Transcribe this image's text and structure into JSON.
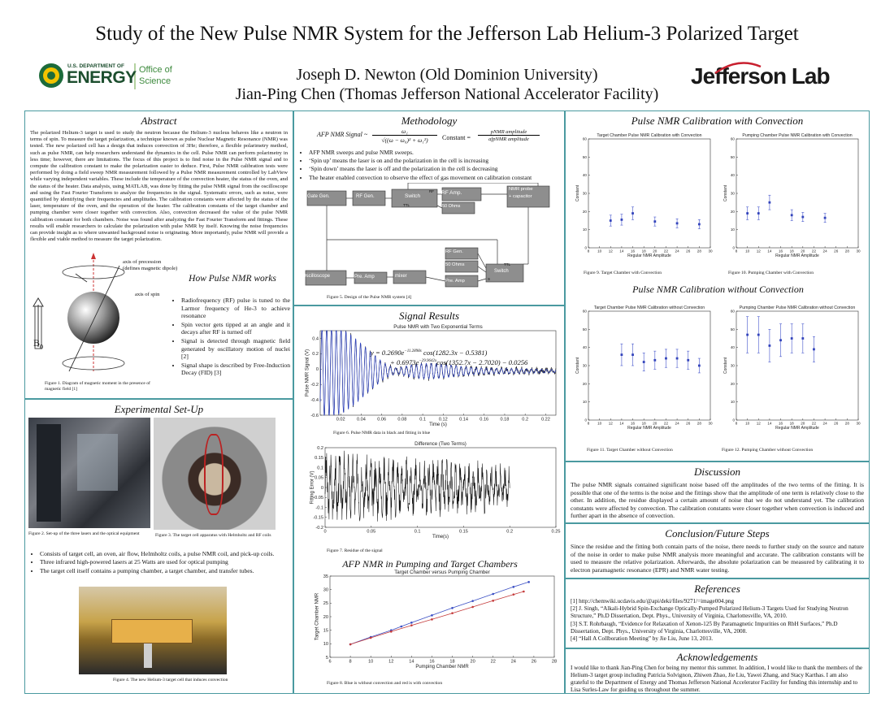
{
  "title": "Study of the New Pulse NMR System for the Jefferson Lab Helium-3 Polarized Target",
  "authors": [
    "Joseph D. Newton (Old Dominion University)",
    "Jian-Ping Chen (Thomas Jefferson National Accelerator Facility)"
  ],
  "logos": {
    "doe_small": "U.S. DEPARTMENT OF",
    "doe_big": "ENERGY",
    "doe_office1": "Office of",
    "doe_office2": "Science",
    "jlab": "Jefferson Lab"
  },
  "abstract": {
    "heading": "Abstract",
    "text": "The polarized Helium-3 target is used to study the neutron because the Helium-3 nucleus behaves like a neutron in terms of spin. To measure the target polarization, a technique known as pulse Nuclear Magnetic Resonance (NMR) was tested. The new polarized cell has a design that induces convection of 3He; therefore, a flexible polarimetry method, such as pulse NMR, can help researchers understand the dynamics in the cell. Pulse NMR can perform polarimetry in less time; however, there are limitations. The focus of this project is to find noise in the Pulse NMR signal and to compute the calibration constant to make the polarization easier to deduce. First, Pulse NMR calibration tests were performed by doing a field sweep NMR measurement followed by a Pulse NMR measurement controlled by LabView while varying independent variables. These include the temperature of the convection heater, the status of the oven, and the status of the heater. Data analysis, using MATLAB, was done by fitting the pulse NMR signal from the oscilloscope and using the Fast Fourier Transform to analyze the frequencies in the signal. Systematic errors, such as noise, were quantified by identifying their frequencies and amplitudes. The calibration constants were affected by the status of the laser, temperature of the oven, and the operation of the heater. The calibration constants of the target chamber and pumping chamber were closer together with convection. Also, convection decreased the value of the pulse NMR calibration constant for both chambers. Noise was found after analyzing the Fast Fourier Transform and fittings. These results will enable researchers to calculate the polarization with pulse NMR by itself. Knowing the noise frequencies can provide insight as to where unwanted background noise is originating. More importantly, pulse NMR will provide a flexible and viable method to measure the target polarization."
  },
  "how": {
    "heading": "How Pulse NMR works",
    "label_axis": "axis of precession",
    "label_axis2": "(defines magnetic dipole)",
    "label_spin": "axis of spin",
    "label_b0": "B",
    "label_b0_sub": "0",
    "bullets": [
      "Radiofrequency (RF) pulse is tuned to the Larmor frequency of He-3 to achieve resonance",
      "Spin vector gets tipped at an angle and it decays after RF is turned off",
      "Signal is detected through magnetic field generated by oscillatory motion of nuclei [2]",
      "Signal shape is described by Free-Induction Decay (FID) [3]"
    ],
    "fig1": "Figure 1.  Diagram of magnetic moment in the presence of magnetic field [1]"
  },
  "setup": {
    "heading": "Experimental Set-Up",
    "fig2": "Figure 2.  Set-up of the three lasers and the optical equipment",
    "fig3": "Figure 3.  The target cell apparatus with Helmholtz and RF coils",
    "bullets": [
      "Consists of target cell, an oven, air flow, Helmholtz coils, a pulse NMR coil, and pick-up coils.",
      "Three infrared high-powered lasers at 25 Watts are used for optical pumping",
      "The target cell itself contains a pumping chamber, a target chamber, and transfer tubes."
    ],
    "fig4": "Figure 4.  The new Helium-3 target cell that induces convection"
  },
  "method": {
    "heading": "Methodology",
    "eq_lhs": "AFP NMR Signal ~",
    "eq_num": "ω₁",
    "eq_den": "√((ω − ω₀)² + ω₁²)",
    "const_lhs": "Constant =",
    "const_num": "pNMR amplitude",
    "const_den": "afpNMR amplitude",
    "bullets": [
      "AFP NMR sweeps and pulse NMR sweeps.",
      "‘Spin up’ means the laser is on and the polarization in the cell is increasing",
      "‘Spin down’ means the laser is off and the polarization in the cell is decreasing",
      "The heater enabled convection to observe the effect of gas movement on calibration constant"
    ],
    "blocks": {
      "gate": "Gate Gen.",
      "rfgen": "RF Gen.",
      "switch": "Switch",
      "rfamp": "RF Amp.",
      "probe1": "NMR probe",
      "probe2": "+ capacitor",
      "ohms1": "50 Ohms",
      "rfgen2": "RF Gen.",
      "ohms2": "50 Ohms",
      "switch2": "Switch",
      "osc": "Oscilloscope",
      "preamp": "Pre. Amp",
      "mixer": "mixer",
      "preamp2": "Pre. Amp",
      "rf": "RF",
      "ttl": "TTL",
      "s": "S"
    },
    "fig5": "Figure 5.  Design of the Pulse NMR system [4]"
  },
  "signal": {
    "heading": "Signal Results",
    "fig6": "Figure 6.  Pulse NMR data in black and fitting in blue",
    "fig7": "Figure 7.  Residue of the signal",
    "eq1": "y = 0.2690e",
    "eq1_exp": "−11.2898x",
    "eq1_rest": "cos(1282.3x − 0.5381)",
    "eq2": "+ 0.6973e",
    "eq2_exp": "−29.9642x",
    "eq2_rest": "cos(1352.7x − 2.7020) − 0.0256"
  },
  "afp": {
    "heading": "AFP NMR in Pumping and Target Chambers",
    "fig8": "Figure 8.  Blue is without convection and red is with convection"
  },
  "calib": {
    "heading1": "Pulse NMR Calibration with Convection",
    "heading2": "Pulse NMR Calibration without Convection",
    "fig9": "Figure 9.  Target Chamber with Convection",
    "fig10": "Figure 10.  Pumping Chamber with Convection",
    "fig11": "Figure 11.  Target Chamber without Convection",
    "fig12": "Figure 12.  Pumping Chamber without Convection"
  },
  "discussion": {
    "heading": "Discussion",
    "text": "The pulse NMR signals contained significant noise based off the amplitudes of the two terms of the fitting.  It is possible that one of the terms is the noise and the fittings show that the amplitude of one term is relatively close to the other.  In addition, the residue displayed a certain amount of noise that we do not understand yet.   The calibration constants were affected by convection.   The calibration constants were closer together when convection is induced and further apart in the absence of convection."
  },
  "conclusion": {
    "heading": "Conclusion/Future Steps",
    "text": "Since the residue and the fitting both contain parts of the noise, there needs to further study on the source and nature of the noise in order to make pulse NMR analysis more meaningful and accurate.  The calibration constants will be used to measure the relative polarization.  Afterwards, the absolute polarization can be measured by calibrating it to electron paramagnetic resonance (EPR) and NMR water testing."
  },
  "references": {
    "heading": "References",
    "items": [
      "[1] http://chemwiki.ucdavis.edu/@api/deki/files/9271/=image004.png",
      "[2] J. Singh, “Alkali-Hybrid Spin-Exchange Optically-Pumped Polarized Helium-3 Targets Used for Studying Neutron Structure,” Ph.D Dissertation, Dept. Phys., University of Virginia, Charlottesville, VA, 2010.",
      "[3] S.T. Rohrbaugh, “Evidence for Relaxation of Xenon-125 By Paramagnetic Impurities on RbH Surfaces,” Ph.D Dissertation, Dept. Phys., University of Virginia, Charlottesville, VA, 2008.",
      "[4] “Hall A Collboration Meeting” by Jie Liu, June 13, 2013."
    ]
  },
  "ack": {
    "heading": "Acknowledgements",
    "text": "I would like to thank Jian-Ping Chen for being my mentor this summer.  In addition, I would like to thank the members of the Helium-3 target group including Patricia Solvignon, Zhiwen Zhao, Jie Liu, Yawei Zhang, and Stacy Karthas.  I am also grateful to the Department of Energy and Thomas Jefferson National Accelerator Facility for funding this internship and to Lisa Surles-Law for guiding us throughout the summer."
  },
  "chart_data": [
    {
      "type": "line",
      "title": "Pulse NMR with Two Exponential Terms",
      "xlabel": "Time (s)",
      "ylabel": "Pulse NMR Signal (V)",
      "xlim": [
        0,
        0.23
      ],
      "ylim": [
        -0.6,
        0.5
      ],
      "xticks": [
        0.02,
        0.04,
        0.06,
        0.08,
        0.1,
        0.12,
        0.14,
        0.16,
        0.18,
        0.2,
        0.22
      ],
      "yticks": [
        -0.6,
        -0.4,
        -0.2,
        0,
        0.2,
        0.4
      ],
      "fit": {
        "a1": 0.269,
        "b1": 11.2898,
        "w1": 1282.3,
        "p1": -0.5381,
        "a2": 0.6973,
        "b2": 29.9642,
        "w2": 1352.7,
        "p2": -2.702,
        "c": -0.0256
      }
    },
    {
      "type": "line",
      "title": "Difference (Two Terms)",
      "xlabel": "Time(s)",
      "ylabel": "Fitting Error (V)",
      "xlim": [
        0,
        0.25
      ],
      "ylim": [
        -0.2,
        0.2
      ],
      "xticks": [
        0,
        0.05,
        0.1,
        0.15,
        0.2,
        0.25
      ],
      "yticks": [
        -0.2,
        -0.15,
        -0.1,
        -0.05,
        0,
        0.05,
        0.1,
        0.15,
        0.2
      ]
    },
    {
      "type": "line",
      "title": "Target Chamber versus Pumping Chamber",
      "xlabel": "Pumping Chamber NMR",
      "ylabel": "Target Chamber NMR",
      "xlim": [
        6,
        28
      ],
      "ylim": [
        5,
        35
      ],
      "xticks": [
        6,
        8,
        10,
        12,
        14,
        16,
        18,
        20,
        22,
        24,
        26,
        28
      ],
      "yticks": [
        5,
        10,
        15,
        20,
        25,
        30,
        35
      ],
      "series": [
        {
          "name": "without convection",
          "color": "#3a4fc4",
          "x": [
            8,
            10,
            12,
            13,
            14,
            16,
            18,
            20,
            22,
            24,
            25.5
          ],
          "y": [
            9.8,
            12.5,
            15,
            16.4,
            17.8,
            20.5,
            23.2,
            25.8,
            28.4,
            31,
            32.8
          ]
        },
        {
          "name": "with convection",
          "color": "#c43a3a",
          "x": [
            8,
            10,
            12,
            14,
            16,
            18,
            20,
            22,
            24,
            25
          ],
          "y": [
            9.8,
            12.2,
            14.5,
            16.8,
            19,
            21.3,
            23.6,
            25.9,
            28.2,
            29.3
          ]
        }
      ]
    },
    {
      "type": "scatter",
      "title": "Target Chamber Pulse NMR Calibration with Convection",
      "xlabel": "Regular NMR Amplitude",
      "ylabel": "Constant",
      "xlim": [
        8,
        30
      ],
      "ylim": [
        0,
        60
      ],
      "xticks": [
        8,
        10,
        12,
        14,
        16,
        18,
        20,
        22,
        24,
        26,
        28,
        30
      ],
      "yticks": [
        0,
        10,
        20,
        30,
        40,
        50,
        60
      ],
      "x": [
        12,
        14,
        16,
        20,
        24,
        28
      ],
      "y": [
        15,
        15.5,
        19,
        14.5,
        13.5,
        13
      ],
      "err": [
        3,
        3,
        3.5,
        2.5,
        2.5,
        2.5
      ]
    },
    {
      "type": "scatter",
      "title": "Pumping Chamber Pulse NMR Calibration with Convection",
      "xlabel": "Regular NMR Amplitude",
      "ylabel": "Constant",
      "xlim": [
        8,
        30
      ],
      "ylim": [
        0,
        60
      ],
      "xticks": [
        8,
        10,
        12,
        14,
        16,
        18,
        20,
        22,
        24,
        26,
        28,
        30
      ],
      "yticks": [
        0,
        10,
        20,
        30,
        40,
        50,
        60
      ],
      "x": [
        10,
        12,
        14,
        18,
        20,
        24
      ],
      "y": [
        19,
        19,
        25,
        18,
        17,
        16.5
      ],
      "err": [
        3.5,
        3.5,
        4,
        3,
        2.5,
        2.5
      ]
    },
    {
      "type": "scatter",
      "title": "Target Chamber Pulse NMR Calibration without Convection",
      "xlabel": "Regular NMR Amplitude",
      "ylabel": "Constant",
      "xlim": [
        8,
        30
      ],
      "ylim": [
        0,
        60
      ],
      "xticks": [
        8,
        10,
        12,
        14,
        16,
        18,
        20,
        22,
        24,
        26,
        28,
        30
      ],
      "yticks": [
        0,
        10,
        20,
        30,
        40,
        50,
        60
      ],
      "x": [
        14,
        16,
        18,
        20,
        22,
        24,
        26,
        28
      ],
      "y": [
        36,
        36,
        32,
        33,
        34,
        34,
        33,
        30
      ],
      "err": [
        6,
        6,
        5,
        5,
        5,
        5,
        5,
        4
      ]
    },
    {
      "type": "scatter",
      "title": "Pumping Chamber Pulse NMR Calibration without Convection",
      "xlabel": "Regular NMR Amplitude",
      "ylabel": "Constant",
      "xlim": [
        8,
        30
      ],
      "ylim": [
        0,
        60
      ],
      "xticks": [
        8,
        10,
        12,
        14,
        16,
        18,
        20,
        22,
        24,
        26,
        28,
        30
      ],
      "yticks": [
        0,
        10,
        20,
        30,
        40,
        50,
        60
      ],
      "x": [
        10,
        12,
        14,
        16,
        18,
        20,
        22
      ],
      "y": [
        47,
        47,
        41,
        44,
        45,
        45,
        39
      ],
      "err": [
        10,
        10,
        9,
        9,
        8,
        8,
        7
      ]
    }
  ]
}
